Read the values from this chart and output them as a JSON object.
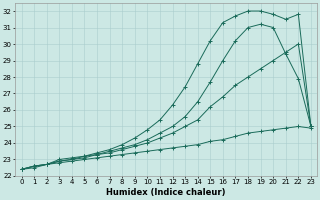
{
  "xlabel": "Humidex (Indice chaleur)",
  "xlim": [
    -0.5,
    23.5
  ],
  "ylim": [
    22,
    32.5
  ],
  "bg_color": "#cce8e4",
  "line_color": "#1a6b5a",
  "grid_color": "#aacece",
  "lines": [
    {
      "x": [
        0,
        1,
        2,
        3,
        4,
        5,
        6,
        7,
        8,
        9,
        10,
        11,
        12,
        13,
        14,
        15,
        16,
        17,
        18,
        19,
        20,
        21,
        22,
        23
      ],
      "y": [
        22.4,
        22.5,
        22.7,
        22.8,
        22.9,
        23.0,
        23.1,
        23.2,
        23.3,
        23.4,
        23.5,
        23.6,
        23.7,
        23.8,
        23.9,
        24.1,
        24.2,
        24.4,
        24.6,
        24.7,
        24.8,
        24.9,
        25.0,
        24.9
      ]
    },
    {
      "x": [
        0,
        1,
        2,
        3,
        4,
        5,
        6,
        7,
        8,
        9,
        10,
        11,
        12,
        13,
        14,
        15,
        16,
        17,
        18,
        19,
        20,
        21,
        22,
        23
      ],
      "y": [
        22.4,
        22.6,
        22.7,
        22.9,
        23.0,
        23.1,
        23.3,
        23.4,
        23.6,
        23.8,
        24.0,
        24.3,
        24.6,
        25.0,
        25.4,
        26.2,
        26.8,
        27.5,
        28.0,
        28.5,
        29.0,
        29.5,
        30.0,
        25.0
      ]
    },
    {
      "x": [
        0,
        1,
        2,
        3,
        4,
        5,
        6,
        7,
        8,
        9,
        10,
        11,
        12,
        13,
        14,
        15,
        16,
        17,
        18,
        19,
        20,
        21,
        22,
        23
      ],
      "y": [
        22.4,
        22.6,
        22.7,
        22.9,
        23.0,
        23.2,
        23.3,
        23.5,
        23.7,
        23.9,
        24.2,
        24.6,
        25.0,
        25.6,
        26.5,
        27.7,
        29.0,
        30.2,
        31.0,
        31.2,
        31.0,
        29.4,
        27.9,
        25.0
      ]
    },
    {
      "x": [
        0,
        1,
        2,
        3,
        4,
        5,
        6,
        7,
        8,
        9,
        10,
        11,
        12,
        13,
        14,
        15,
        16,
        17,
        18,
        19,
        20,
        21,
        22,
        23
      ],
      "y": [
        22.4,
        22.6,
        22.7,
        23.0,
        23.1,
        23.2,
        23.4,
        23.6,
        23.9,
        24.3,
        24.8,
        25.4,
        26.3,
        27.4,
        28.8,
        30.2,
        31.3,
        31.7,
        32.0,
        32.0,
        31.8,
        31.5,
        31.8,
        25.0
      ]
    }
  ]
}
